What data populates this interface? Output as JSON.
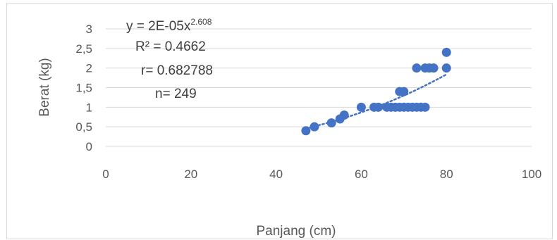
{
  "chart_data": {
    "type": "scatter",
    "xlabel": "Panjang (cm)",
    "ylabel": "Berat (kg)",
    "xlim": [
      0,
      100
    ],
    "ylim": [
      0,
      3
    ],
    "x_ticks": [
      "0",
      "20",
      "40",
      "60",
      "80",
      "100"
    ],
    "y_ticks": [
      "0",
      "0,5",
      "1",
      "1,5",
      "2",
      "2,5",
      "3"
    ],
    "grid": "horizontal",
    "marker_color": "#4472c4",
    "trendline": {
      "type": "power",
      "color": "#4472c4",
      "style": "dotted",
      "coefficient": 2e-05,
      "exponent": 2.608
    },
    "annotations": {
      "equation": "y = 2E-05x",
      "equation_exponent": "2.608",
      "r_squared": "R² = 0.4662",
      "r": "r= 0.682788",
      "n": "n= 249"
    },
    "points": [
      {
        "x": 47,
        "y": 0.4
      },
      {
        "x": 49,
        "y": 0.5
      },
      {
        "x": 53,
        "y": 0.6
      },
      {
        "x": 55,
        "y": 0.7
      },
      {
        "x": 56,
        "y": 0.8
      },
      {
        "x": 60,
        "y": 1.0
      },
      {
        "x": 63,
        "y": 1.0
      },
      {
        "x": 64,
        "y": 1.0
      },
      {
        "x": 66,
        "y": 1.0
      },
      {
        "x": 67,
        "y": 1.0
      },
      {
        "x": 68,
        "y": 1.0
      },
      {
        "x": 69,
        "y": 1.0
      },
      {
        "x": 70,
        "y": 1.0
      },
      {
        "x": 71,
        "y": 1.0
      },
      {
        "x": 72,
        "y": 1.0
      },
      {
        "x": 73,
        "y": 1.0
      },
      {
        "x": 74,
        "y": 1.0
      },
      {
        "x": 75,
        "y": 1.0
      },
      {
        "x": 69,
        "y": 1.4
      },
      {
        "x": 70,
        "y": 1.4
      },
      {
        "x": 73,
        "y": 2.0
      },
      {
        "x": 75,
        "y": 2.0
      },
      {
        "x": 76,
        "y": 2.0
      },
      {
        "x": 77,
        "y": 2.0
      },
      {
        "x": 80,
        "y": 2.0
      },
      {
        "x": 80,
        "y": 2.4
      }
    ]
  }
}
